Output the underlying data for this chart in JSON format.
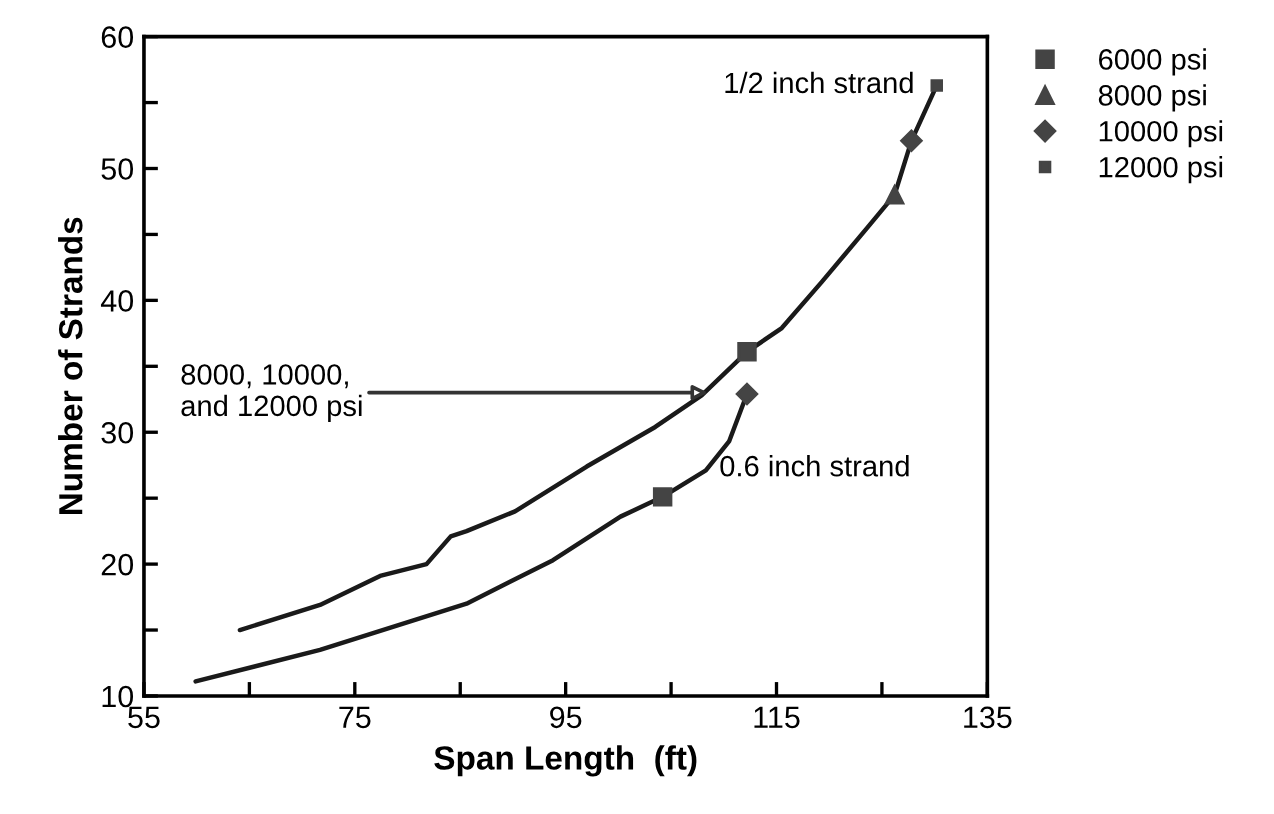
{
  "chart_data": {
    "type": "line",
    "xlabel": "Span Length  (ft)",
    "ylabel": "Number of Strands",
    "xlim": [
      55,
      135
    ],
    "ylim": [
      10,
      60
    ],
    "xticks": [
      55,
      {
        "value": 65,
        "label": null
      },
      75,
      {
        "value": 85,
        "label": null
      },
      95,
      {
        "value": 105,
        "label": null
      },
      115,
      {
        "value": 125,
        "label": null
      },
      135
    ],
    "yticks": [
      10,
      {
        "value": 15,
        "label": null
      },
      20,
      {
        "value": 25,
        "label": null
      },
      30,
      {
        "value": 35,
        "label": null
      },
      40,
      {
        "value": 45,
        "label": null
      },
      50,
      {
        "value": 55,
        "label": null
      },
      60
    ],
    "grid": false,
    "legend": "top right",
    "line_style": "solid",
    "series": [
      {
        "name": "1/2 inch strand",
        "color": "#1a1a1a",
        "marker": "none",
        "x": [
          64.1,
          71.7,
          77.4,
          81.8,
          84.1,
          85.6,
          90.2,
          97.0,
          103.5,
          107.9,
          112.2,
          115.5,
          119.3,
          123.6,
          126.2,
          127.8,
          130.2
        ],
        "values": [
          15.0,
          16.9,
          19.1,
          20.0,
          22.1,
          22.5,
          24.0,
          27.4,
          30.4,
          32.8,
          36.1,
          37.9,
          41.4,
          45.5,
          48.0,
          52.1,
          56.3
        ]
      },
      {
        "name": "0.6 inch strand",
        "color": "#1a1a1a",
        "marker": "none",
        "x": [
          59.9,
          71.7,
          85.6,
          93.8,
          100.2,
          104.2,
          108.3,
          110.5,
          112.2
        ],
        "values": [
          11.1,
          13.5,
          17.0,
          20.3,
          23.6,
          25.1,
          27.1,
          29.3,
          32.9
        ]
      },
      {
        "name": "6000 psi",
        "type": "scatter",
        "color": "#444444",
        "marker": "square",
        "x": [
          104.2,
          112.2
        ],
        "values": [
          25.1,
          36.1
        ]
      },
      {
        "name": "8000 psi",
        "type": "scatter",
        "color": "#444444",
        "marker": "triangle",
        "x": [
          126.2
        ],
        "values": [
          48.0
        ]
      },
      {
        "name": "10000 psi",
        "type": "scatter",
        "color": "#444444",
        "marker": "diamond",
        "x": [
          127.8,
          112.2
        ],
        "values": [
          52.1,
          32.9
        ]
      },
      {
        "name": "12000 psi",
        "type": "scatter",
        "color": "#444444",
        "marker": "square",
        "x": [
          130.2
        ],
        "values": [
          56.3
        ]
      }
    ],
    "annotations": [
      {
        "text": "8000, 10000,\nand 12000 psi",
        "x": 108.5,
        "y": 33.0
      }
    ]
  }
}
